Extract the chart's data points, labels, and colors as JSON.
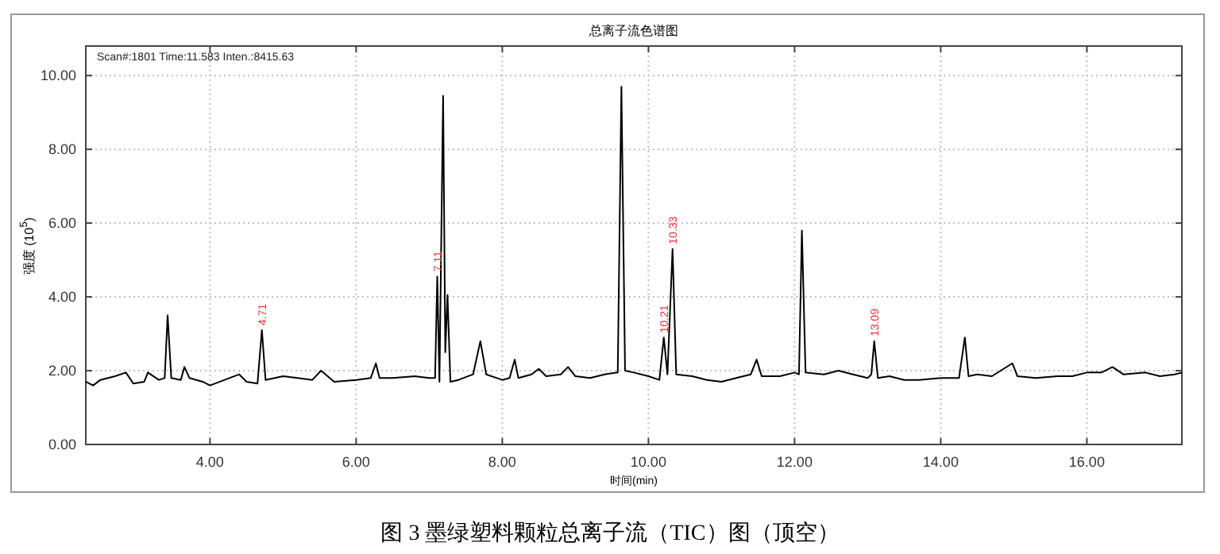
{
  "chart_data": {
    "type": "line",
    "title": "总离子流色谱图",
    "xlabel": "时间(min)",
    "ylabel": "强度 (10$^{5}$)",
    "color": "#000000",
    "grid": true,
    "xlim": [
      2.3,
      17.3
    ],
    "ylim": [
      0,
      10.8
    ],
    "xticks": [
      {
        "value": 4,
        "label": "4.00"
      },
      {
        "value": 6,
        "label": "6.00"
      },
      {
        "value": 8,
        "label": "8.00"
      },
      {
        "value": 10,
        "label": "10.00"
      },
      {
        "value": 12,
        "label": "12.00"
      },
      {
        "value": 14,
        "label": "14.00"
      },
      {
        "value": 16,
        "label": "16.00"
      }
    ],
    "yticks": [
      {
        "value": 0,
        "label": "0.00"
      },
      {
        "value": 2,
        "label": "2.00"
      },
      {
        "value": 4,
        "label": "4.00"
      },
      {
        "value": 6,
        "label": "6.00"
      },
      {
        "value": 8,
        "label": "8.00"
      },
      {
        "value": 10,
        "label": "10.00"
      }
    ],
    "x": [
      2.3,
      2.4,
      2.5,
      2.7,
      2.85,
      2.95,
      3.1,
      3.15,
      3.3,
      3.38,
      3.42,
      3.47,
      3.6,
      3.65,
      3.72,
      3.9,
      4.0,
      4.2,
      4.4,
      4.5,
      4.65,
      4.71,
      4.76,
      5.0,
      5.2,
      5.4,
      5.52,
      5.7,
      6.0,
      6.2,
      6.27,
      6.32,
      6.5,
      6.8,
      7.0,
      7.08,
      7.11,
      7.14,
      7.19,
      7.22,
      7.25,
      7.29,
      7.4,
      7.6,
      7.7,
      7.78,
      8.0,
      8.1,
      8.17,
      8.22,
      8.4,
      8.5,
      8.6,
      8.8,
      8.9,
      9.0,
      9.2,
      9.4,
      9.58,
      9.63,
      9.68,
      9.8,
      10.0,
      10.15,
      10.21,
      10.26,
      10.33,
      10.38,
      10.6,
      10.8,
      11.0,
      11.2,
      11.4,
      11.48,
      11.55,
      11.8,
      12.0,
      12.06,
      12.1,
      12.15,
      12.4,
      12.6,
      12.8,
      13.0,
      13.05,
      13.09,
      13.14,
      13.3,
      13.5,
      13.7,
      14.0,
      14.25,
      14.33,
      14.38,
      14.5,
      14.7,
      14.98,
      15.05,
      15.3,
      15.6,
      15.8,
      16.0,
      16.2,
      16.35,
      16.5,
      16.8,
      17.0,
      17.2,
      17.3
    ],
    "values": [
      1.7,
      1.6,
      1.75,
      1.85,
      1.95,
      1.65,
      1.7,
      1.95,
      1.75,
      1.8,
      3.5,
      1.8,
      1.75,
      2.1,
      1.8,
      1.7,
      1.6,
      1.75,
      1.9,
      1.7,
      1.65,
      3.1,
      1.75,
      1.85,
      1.8,
      1.75,
      2.0,
      1.7,
      1.75,
      1.8,
      2.2,
      1.8,
      1.8,
      1.85,
      1.8,
      1.8,
      4.55,
      1.7,
      9.45,
      2.5,
      4.05,
      1.7,
      1.75,
      1.9,
      2.8,
      1.9,
      1.75,
      1.8,
      2.3,
      1.8,
      1.9,
      2.05,
      1.85,
      1.9,
      2.1,
      1.85,
      1.8,
      1.9,
      1.95,
      9.7,
      2.0,
      1.95,
      1.85,
      1.75,
      2.9,
      1.9,
      5.3,
      1.9,
      1.85,
      1.75,
      1.7,
      1.8,
      1.9,
      2.3,
      1.85,
      1.85,
      1.95,
      1.9,
      5.8,
      1.95,
      1.9,
      2.0,
      1.9,
      1.8,
      1.9,
      2.8,
      1.8,
      1.85,
      1.75,
      1.75,
      1.8,
      1.8,
      2.9,
      1.85,
      1.9,
      1.85,
      2.2,
      1.85,
      1.8,
      1.85,
      1.85,
      1.95,
      1.95,
      2.1,
      1.9,
      1.95,
      1.85,
      1.9,
      1.95
    ],
    "annotations": [
      "Scan#:1801 Time:11.583 Inten.:8415.63",
      {
        "text": "4.71",
        "x": 4.71,
        "y": 3.1
      },
      {
        "text": "7.11",
        "x": 7.11,
        "y": 4.55
      },
      {
        "text": "10.21",
        "x": 10.21,
        "y": 2.9
      },
      {
        "text": "10.33",
        "x": 10.33,
        "y": 5.3
      },
      {
        "text": "13.09",
        "x": 13.09,
        "y": 2.8
      },
      "图 3 墨绿塑料颗粒总离子流（TIC）图（顶空）"
    ]
  }
}
